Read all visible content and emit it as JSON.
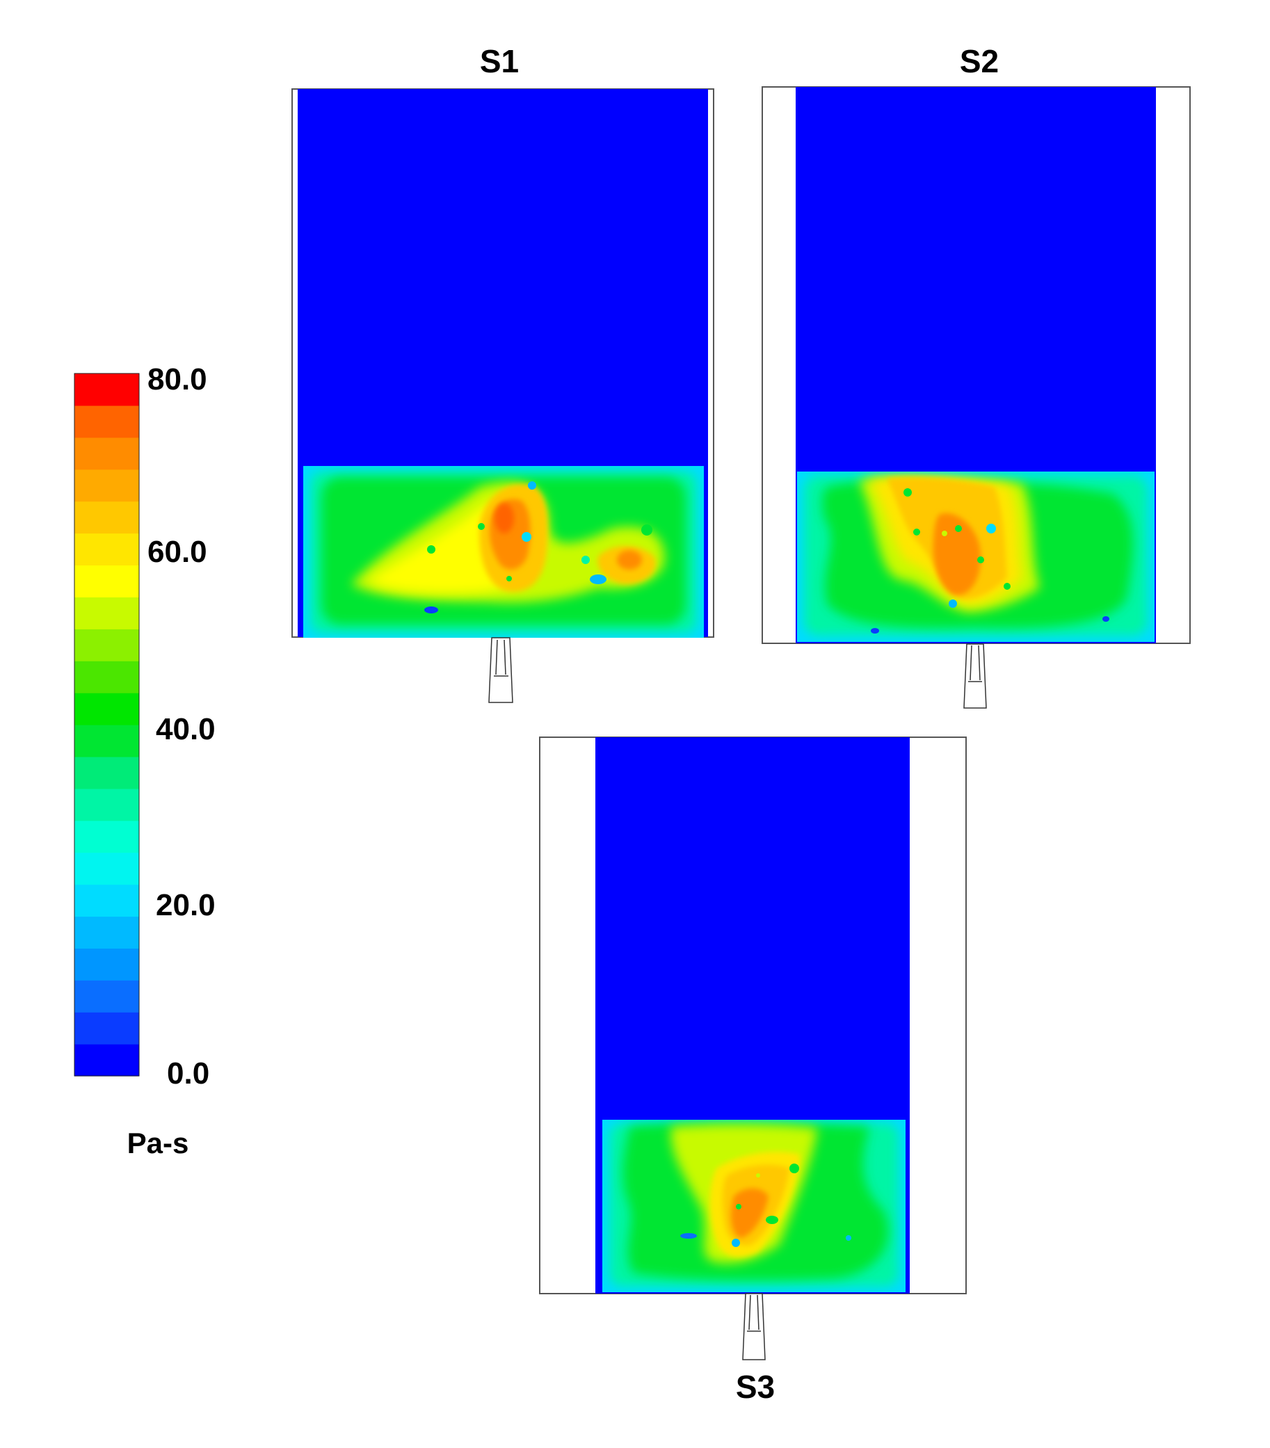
{
  "colorbar": {
    "tick_labels": [
      "80.0",
      "60.0",
      "40.0",
      "20.0",
      "0.0"
    ],
    "unit": "Pa-s",
    "range": [
      0,
      80
    ],
    "levels": [
      "#0000ff",
      "#0a3cff",
      "#0a6eff",
      "#0096ff",
      "#00baff",
      "#00dcff",
      "#00f5f0",
      "#00ffd2",
      "#00f5a5",
      "#00eb78",
      "#00e632",
      "#00e600",
      "#4be600",
      "#8cf000",
      "#c8fa00",
      "#ffff00",
      "#ffe600",
      "#ffc800",
      "#ffaa00",
      "#ff8c00",
      "#ff6400",
      "#ff0000"
    ]
  },
  "panels": [
    {
      "title": "S1"
    },
    {
      "title": "S2"
    },
    {
      "title": "S3"
    }
  ]
}
